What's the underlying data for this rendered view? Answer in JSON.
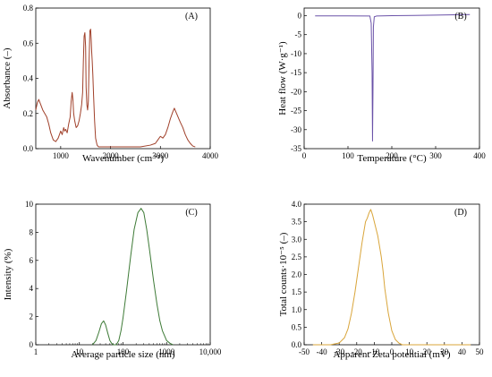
{
  "figure": {
    "panels": [
      "(A)",
      "(B)",
      "(C)",
      "(D)"
    ]
  },
  "chart_data": [
    {
      "type": "line",
      "panel": "(A)",
      "xlabel": "Wavenumber (cm⁻¹)",
      "ylabel": "Absorbance (–)",
      "xlim": [
        500,
        4000
      ],
      "ylim": [
        0,
        0.8
      ],
      "xticks": [
        1000,
        2000,
        3000,
        4000
      ],
      "yticks": [
        0.0,
        0.2,
        0.4,
        0.6,
        0.8
      ],
      "ytick_labels": [
        "0.0",
        "0.2",
        "0.4",
        "0.6",
        "0.8"
      ],
      "line_color": "#a0402a",
      "series": [
        {
          "x": [
            500,
            530,
            560,
            600,
            640,
            680,
            720,
            760,
            800,
            850,
            900,
            950,
            1000,
            1030,
            1060,
            1080,
            1100,
            1130,
            1160,
            1190,
            1210,
            1230,
            1245,
            1260,
            1280,
            1310,
            1340,
            1370,
            1395,
            1420,
            1440,
            1455,
            1470,
            1485,
            1500,
            1510,
            1525,
            1540,
            1555,
            1570,
            1585,
            1600,
            1612,
            1622,
            1632,
            1645,
            1660,
            1680,
            1700,
            1730,
            1760,
            1800,
            1900,
            2000,
            2200,
            2400,
            2600,
            2800,
            2900,
            2950,
            3000,
            3050,
            3100,
            3150,
            3200,
            3250,
            3280,
            3310,
            3340,
            3370,
            3400,
            3450,
            3500,
            3550,
            3600,
            3650,
            3700
          ],
          "y": [
            0.22,
            0.26,
            0.28,
            0.25,
            0.22,
            0.2,
            0.18,
            0.14,
            0.09,
            0.05,
            0.04,
            0.06,
            0.1,
            0.08,
            0.12,
            0.1,
            0.11,
            0.09,
            0.14,
            0.18,
            0.27,
            0.32,
            0.28,
            0.2,
            0.16,
            0.12,
            0.13,
            0.16,
            0.2,
            0.25,
            0.32,
            0.5,
            0.64,
            0.66,
            0.58,
            0.35,
            0.25,
            0.22,
            0.27,
            0.5,
            0.67,
            0.68,
            0.62,
            0.55,
            0.5,
            0.42,
            0.3,
            0.16,
            0.06,
            0.02,
            0.01,
            0.01,
            0.01,
            0.01,
            0.01,
            0.01,
            0.01,
            0.02,
            0.03,
            0.05,
            0.07,
            0.06,
            0.08,
            0.12,
            0.17,
            0.21,
            0.23,
            0.21,
            0.19,
            0.17,
            0.15,
            0.12,
            0.08,
            0.05,
            0.03,
            0.015,
            0.01
          ]
        }
      ]
    },
    {
      "type": "line",
      "panel": "(B)",
      "xlabel": "Temperature (°C)",
      "ylabel": "Heat flow (W·g⁻¹)",
      "xlim": [
        0,
        400
      ],
      "ylim": [
        -35,
        2
      ],
      "xticks": [
        0,
        100,
        200,
        300,
        400
      ],
      "yticks": [
        0,
        -5,
        -10,
        -15,
        -20,
        -25,
        -30,
        -35
      ],
      "ytick_labels": [
        "0",
        "-5",
        "-10",
        "-15",
        "-20",
        "-25",
        "-30",
        "-35"
      ],
      "line_color": "#6a52a8",
      "series": [
        {
          "x": [
            25,
            100,
            150,
            153,
            155,
            156,
            157,
            158,
            160,
            165,
            200,
            250,
            300,
            350,
            378
          ],
          "y": [
            -0.05,
            -0.05,
            -0.1,
            -2,
            -15,
            -33,
            -20,
            -3,
            -0.3,
            -0.1,
            0,
            0.05,
            0.15,
            0.25,
            0.3
          ]
        }
      ]
    },
    {
      "type": "line",
      "panel": "(C)",
      "xlabel": "Average particle size (nm)",
      "ylabel": "Intensity (%)",
      "xscale": "log",
      "xlim": [
        1,
        10000
      ],
      "ylim": [
        0,
        10
      ],
      "xticks": [
        1,
        10,
        100,
        1000,
        10000
      ],
      "xtick_labels": [
        "1",
        "10",
        "100",
        "1000",
        "10,000"
      ],
      "yticks": [
        0,
        2,
        4,
        6,
        8,
        10
      ],
      "ytick_labels": [
        "0",
        "2",
        "4",
        "6",
        "8",
        "10"
      ],
      "line_color": "#3d7a36",
      "series": [
        {
          "x": [
            20,
            24,
            28,
            32,
            36,
            40,
            45,
            50,
            55,
            60,
            70,
            80,
            90,
            100,
            120,
            150,
            180,
            220,
            260,
            300,
            350,
            400,
            500,
            600,
            700,
            800,
            1000,
            1200,
            1400
          ],
          "y": [
            0,
            0.3,
            0.9,
            1.5,
            1.7,
            1.4,
            0.8,
            0.3,
            0.1,
            0,
            0,
            0.3,
            1.0,
            1.9,
            3.8,
            6.3,
            8.2,
            9.4,
            9.7,
            9.4,
            8.2,
            6.9,
            4.6,
            2.9,
            1.7,
            1.0,
            0.3,
            0.1,
            0
          ]
        }
      ]
    },
    {
      "type": "line",
      "panel": "(D)",
      "xlabel": "Apparent Zeta potential (mV)",
      "ylabel": "Total counts·10⁻⁵ (–)",
      "xlim": [
        -50,
        50
      ],
      "ylim": [
        0,
        4
      ],
      "xticks": [
        -50,
        -40,
        -30,
        -20,
        -10,
        0,
        10,
        20,
        30,
        40,
        50
      ],
      "yticks": [
        0,
        0.5,
        1.0,
        1.5,
        2.0,
        2.5,
        3.0,
        3.5,
        4.0
      ],
      "ytick_labels": [
        "0.0",
        "0.5",
        "1.0",
        "1.5",
        "2.0",
        "2.5",
        "3.0",
        "3.5",
        "4.0"
      ],
      "line_color": "#d9a53a",
      "series": [
        {
          "x": [
            -45,
            -35,
            -30,
            -27,
            -25,
            -23,
            -21,
            -19,
            -17,
            -15,
            -14,
            -13,
            -12,
            -11,
            -10,
            -9,
            -8,
            -7,
            -6,
            -5,
            -4,
            -2,
            0,
            2,
            4,
            6,
            10,
            20,
            30,
            45
          ],
          "y": [
            0,
            0,
            0.05,
            0.2,
            0.45,
            0.9,
            1.5,
            2.2,
            2.9,
            3.5,
            3.6,
            3.75,
            3.85,
            3.7,
            3.5,
            3.3,
            3.1,
            2.8,
            2.5,
            2.1,
            1.6,
            0.9,
            0.4,
            0.15,
            0.05,
            0,
            0,
            0,
            0,
            0
          ]
        }
      ]
    }
  ]
}
